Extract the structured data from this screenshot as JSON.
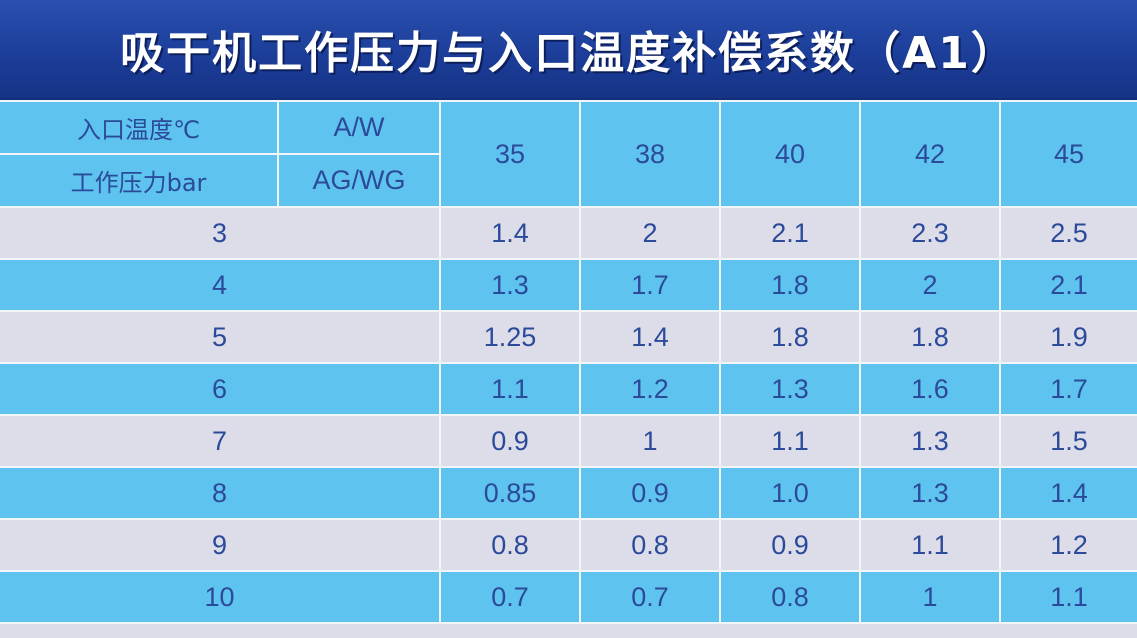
{
  "title": "吸干机工作压力与入口温度补偿系数（A1）",
  "header": {
    "inlet_temp_label": "入口温度℃",
    "pressure_label": "工作压力bar",
    "model_a": "A/W",
    "model_b": "AG/WG",
    "temperatures": [
      "35",
      "38",
      "40",
      "42",
      "45"
    ]
  },
  "rows": [
    {
      "pressure": "3",
      "values": [
        "1.4",
        "2",
        "2.1",
        "2.3",
        "2.5"
      ]
    },
    {
      "pressure": "4",
      "values": [
        "1.3",
        "1.7",
        "1.8",
        "2",
        "2.1"
      ]
    },
    {
      "pressure": "5",
      "values": [
        "1.25",
        "1.4",
        "1.8",
        "1.8",
        "1.9"
      ]
    },
    {
      "pressure": "6",
      "values": [
        "1.1",
        "1.2",
        "1.3",
        "1.6",
        "1.7"
      ]
    },
    {
      "pressure": "7",
      "values": [
        "0.9",
        "1",
        "1.1",
        "1.3",
        "1.5"
      ]
    },
    {
      "pressure": "8",
      "values": [
        "0.85",
        "0.9",
        "1.0",
        "1.3",
        "1.4"
      ]
    },
    {
      "pressure": "9",
      "values": [
        "0.8",
        "0.8",
        "0.9",
        "1.1",
        "1.2"
      ]
    },
    {
      "pressure": "10",
      "values": [
        "0.7",
        "0.7",
        "0.8",
        "1",
        "1.1"
      ]
    }
  ],
  "colors": {
    "title_bg": "#1b3d98",
    "row_blue": "#5ec4ef",
    "row_grey": "#dcdde8",
    "text": "#2b4a9a"
  }
}
